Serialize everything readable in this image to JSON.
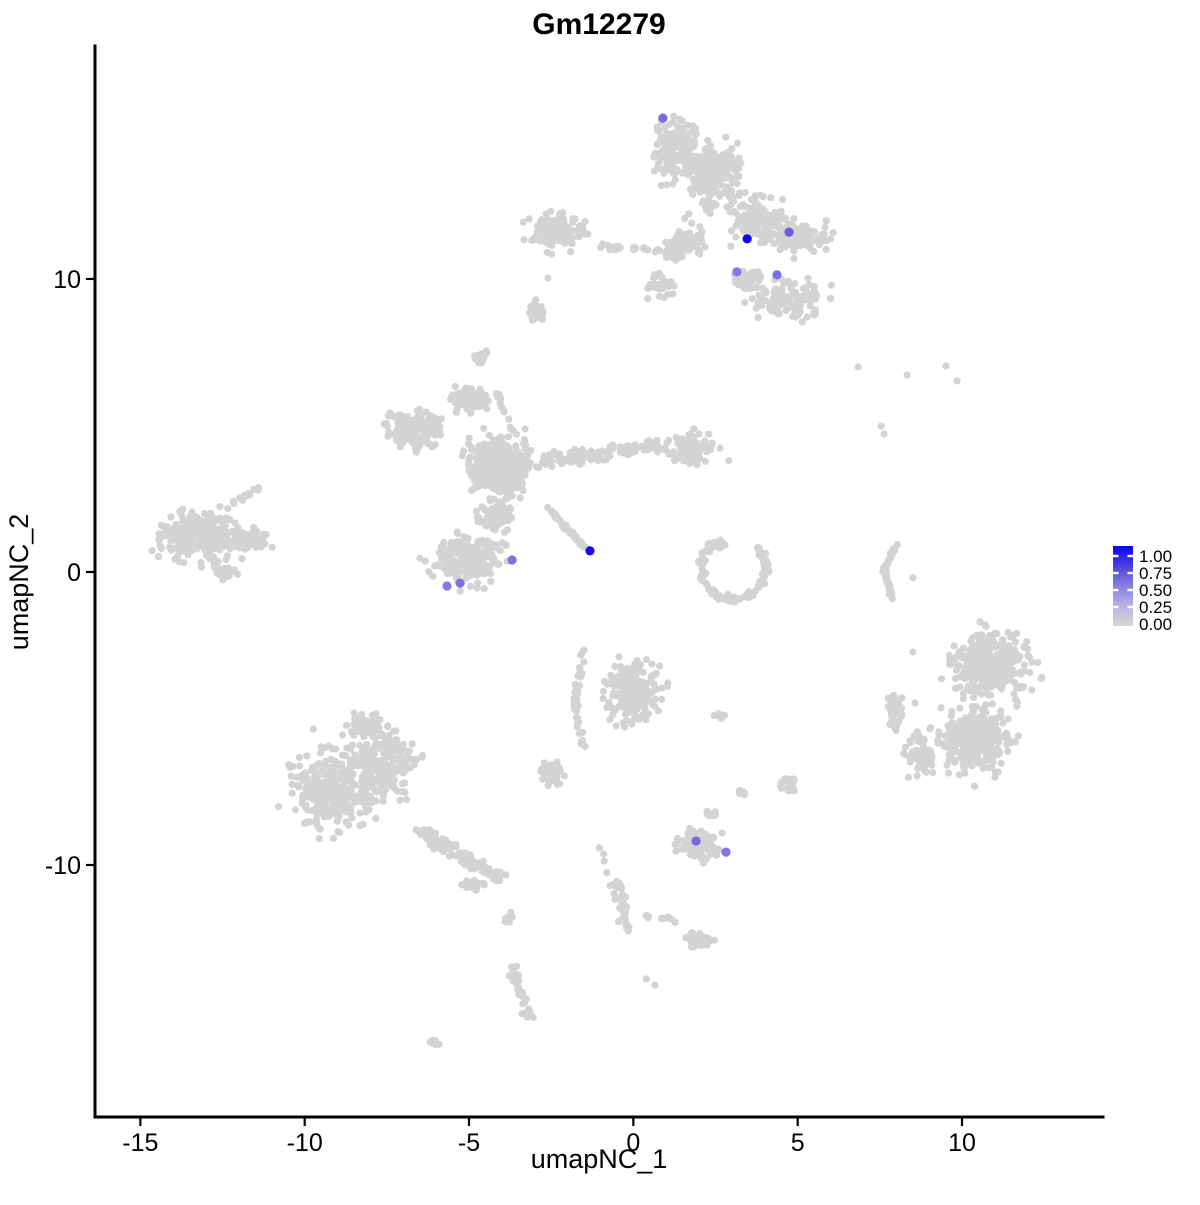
{
  "chart_data": {
    "type": "scatter",
    "title": "Gm12279",
    "xlabel": "umapNC_1",
    "ylabel": "umapNC_2",
    "x_range": [
      -16.38,
      14.29
    ],
    "y_range": [
      -18.6,
      17.95
    ],
    "x_ticks": [
      -15,
      -10,
      -5,
      0,
      5,
      10
    ],
    "y_ticks": [
      -10,
      0,
      10
    ],
    "grid": false,
    "background": "#ffffff",
    "base_point_color": "#d3d3d3",
    "point_radius": 3.6,
    "highlight_radius": 4.6,
    "seed": 20,
    "legend": {
      "position": "right",
      "labels": [
        "1.00",
        "0.75",
        "0.50",
        "0.25",
        "0.00"
      ],
      "values": [
        1.0,
        0.75,
        0.5,
        0.25,
        0.0
      ],
      "gradient": [
        {
          "offset": 0.0,
          "color": "#0502f7"
        },
        {
          "offset": 0.25,
          "color": "#4d41de"
        },
        {
          "offset": 0.5,
          "color": "#8a80e3"
        },
        {
          "offset": 0.75,
          "color": "#b9b3e0"
        },
        {
          "offset": 1.0,
          "color": "#d7d6d9"
        }
      ],
      "tick_color": "#ffffff"
    },
    "clusters": [
      {
        "id": "top-upper-left",
        "kind": "blob",
        "x": 1.33,
        "y": 14.4,
        "rx": 0.91,
        "ry": 1.37,
        "n": 180
      },
      {
        "id": "top-upper-mid",
        "kind": "blob",
        "x": 2.49,
        "y": 13.55,
        "rx": 1.16,
        "ry": 1.54,
        "n": 220
      },
      {
        "id": "top-mid",
        "kind": "blob",
        "x": 3.85,
        "y": 12.01,
        "rx": 1.22,
        "ry": 1.02,
        "n": 150
      },
      {
        "id": "top-right-lobe",
        "kind": "blob",
        "x": 5.07,
        "y": 11.43,
        "rx": 1.16,
        "ry": 0.68,
        "n": 110
      },
      {
        "id": "top-lower-right",
        "kind": "blob",
        "x": 4.77,
        "y": 9.28,
        "rx": 1.46,
        "ry": 0.89,
        "n": 120
      },
      {
        "id": "top-lower-mid",
        "kind": "blob",
        "x": 3.49,
        "y": 9.97,
        "rx": 0.67,
        "ry": 0.61,
        "n": 45
      },
      {
        "id": "top-left-arm",
        "kind": "line",
        "pts": [
          [
            -1.01,
            11.09
          ],
          [
            0.87,
            10.96
          ]
        ],
        "jitter": 0.17,
        "n": 22
      },
      {
        "id": "top-arm-join",
        "kind": "blob",
        "x": 1.21,
        "y": 10.92,
        "rx": 0.61,
        "ry": 0.48,
        "n": 40
      },
      {
        "id": "top-center-sparse",
        "kind": "blob",
        "x": 1.72,
        "y": 11.33,
        "rx": 0.76,
        "ry": 0.85,
        "n": 60
      },
      {
        "id": "top-lower-left-sparse",
        "kind": "blob",
        "x": 0.81,
        "y": 9.8,
        "rx": 0.61,
        "ry": 0.61,
        "n": 30
      },
      {
        "id": "upper-left-small",
        "kind": "blob",
        "x": -2.32,
        "y": 11.67,
        "rx": 1.28,
        "ry": 0.92,
        "n": 110
      },
      {
        "id": "tiny-blob-1",
        "kind": "blob",
        "x": -2.96,
        "y": 8.87,
        "rx": 0.37,
        "ry": 0.48,
        "n": 25
      },
      {
        "id": "tiny-neck-top",
        "kind": "blob",
        "x": -4.66,
        "y": 7.34,
        "rx": 0.37,
        "ry": 0.41,
        "n": 20
      },
      {
        "id": "tiny-neck-line",
        "kind": "line",
        "pts": [
          [
            -4.3,
            6.62
          ],
          [
            -3.69,
            4.78
          ]
        ],
        "jitter": 0.13,
        "n": 12
      },
      {
        "id": "central-core",
        "kind": "blob",
        "x": -4.06,
        "y": 3.65,
        "rx": 1.37,
        "ry": 1.37,
        "n": 400
      },
      {
        "id": "central-left-arm",
        "kind": "blob",
        "x": -6.64,
        "y": 4.85,
        "rx": 1.16,
        "ry": 0.96,
        "n": 130
      },
      {
        "id": "central-top-arm",
        "kind": "blob",
        "x": -4.97,
        "y": 5.87,
        "rx": 0.76,
        "ry": 0.61,
        "n": 80
      },
      {
        "id": "central-right-arm",
        "kind": "line",
        "pts": [
          [
            -2.69,
            3.82
          ],
          [
            0.81,
            4.33
          ]
        ],
        "jitter": 0.4,
        "n": 120
      },
      {
        "id": "central-right-end",
        "kind": "blob",
        "x": 1.82,
        "y": 4.16,
        "rx": 1.06,
        "ry": 0.85,
        "n": 90
      },
      {
        "id": "central-streak",
        "kind": "line",
        "pts": [
          [
            -2.6,
            2.18
          ],
          [
            -1.47,
            0.82
          ]
        ],
        "jitter": 0.1,
        "n": 45
      },
      {
        "id": "central-bottom",
        "kind": "blob",
        "x": -5.12,
        "y": 0.41,
        "rx": 1.52,
        "ry": 1.19,
        "n": 220
      },
      {
        "id": "central-join",
        "kind": "blob",
        "x": -4.21,
        "y": 1.95,
        "rx": 0.76,
        "ry": 0.61,
        "n": 70
      },
      {
        "id": "left-main",
        "kind": "blob",
        "x": -13.18,
        "y": 1.26,
        "rx": 1.58,
        "ry": 1.19,
        "n": 300
      },
      {
        "id": "left-wedge",
        "kind": "blob",
        "x": -11.66,
        "y": 1.09,
        "rx": 0.85,
        "ry": 0.48,
        "n": 60
      },
      {
        "id": "left-arm",
        "kind": "line",
        "pts": [
          [
            -12.21,
            2.29
          ],
          [
            -11.42,
            2.94
          ]
        ],
        "jitter": 0.14,
        "n": 15
      },
      {
        "id": "left-tail",
        "kind": "blob",
        "x": -12.42,
        "y": 0.0,
        "rx": 0.55,
        "ry": 0.34,
        "n": 30
      },
      {
        "id": "c-cluster-arc",
        "kind": "arc",
        "x": 3.03,
        "y": 0.14,
        "rx": 0.97,
        "ry": 1.09,
        "a0": 140,
        "a1": 400,
        "jitter": 0.22,
        "n": 100
      },
      {
        "id": "c-cluster-top",
        "kind": "blob",
        "x": 2.58,
        "y": 0.92,
        "rx": 0.43,
        "ry": 0.27,
        "n": 15
      },
      {
        "id": "right-thin-arc",
        "kind": "line",
        "pts": [
          [
            8.08,
            1.16
          ],
          [
            7.63,
            0.07
          ],
          [
            7.9,
            -0.96
          ]
        ],
        "jitter": 0.1,
        "n": 40
      },
      {
        "id": "tiny-pair",
        "kind": "blob",
        "x": 2.64,
        "y": -4.91,
        "rx": 0.24,
        "ry": 0.17,
        "n": 8
      },
      {
        "id": "right-main-top",
        "kind": "blob",
        "x": 10.85,
        "y": -3.17,
        "rx": 1.67,
        "ry": 1.54,
        "n": 330
      },
      {
        "id": "right-main-bottom",
        "kind": "blob",
        "x": 10.4,
        "y": -5.73,
        "rx": 1.52,
        "ry": 1.64,
        "n": 300
      },
      {
        "id": "right-appendage",
        "kind": "blob",
        "x": 7.99,
        "y": -4.71,
        "rx": 0.43,
        "ry": 0.82,
        "n": 45
      },
      {
        "id": "right-lower-sparse",
        "kind": "blob",
        "x": 8.72,
        "y": -6.25,
        "rx": 0.67,
        "ry": 1.02,
        "n": 60
      },
      {
        "id": "bottomleft-left",
        "kind": "blob",
        "x": -9.23,
        "y": -7.44,
        "rx": 1.58,
        "ry": 1.98,
        "n": 280
      },
      {
        "id": "bottomleft-right",
        "kind": "blob",
        "x": -7.55,
        "y": -6.59,
        "rx": 1.37,
        "ry": 1.54,
        "n": 220
      },
      {
        "id": "bottomleft-tip",
        "kind": "blob",
        "x": -8.16,
        "y": -5.22,
        "rx": 0.91,
        "ry": 0.51,
        "n": 60
      },
      {
        "id": "bottomleft-arm",
        "kind": "line",
        "pts": [
          [
            -6.49,
            -8.81
          ],
          [
            -4.06,
            -10.44
          ]
        ],
        "jitter": 0.4,
        "n": 110
      },
      {
        "id": "bottomleft-arm-end",
        "kind": "blob",
        "x": -4.88,
        "y": -10.68,
        "rx": 0.55,
        "ry": 0.27,
        "n": 20
      },
      {
        "id": "bottomcenter-main",
        "kind": "blob",
        "x": -0.04,
        "y": -4.1,
        "rx": 1.16,
        "ry": 1.54,
        "n": 220
      },
      {
        "id": "bottomcenter-arc",
        "kind": "line",
        "pts": [
          [
            -1.47,
            -2.59
          ],
          [
            -1.77,
            -4.37
          ],
          [
            -1.53,
            -6.01
          ]
        ],
        "jitter": 0.14,
        "n": 40
      },
      {
        "id": "small-blob-left",
        "kind": "blob",
        "x": -2.53,
        "y": -6.83,
        "rx": 0.55,
        "ry": 0.55,
        "n": 45
      },
      {
        "id": "bottom-small-main",
        "kind": "blob",
        "x": 2.03,
        "y": -9.32,
        "rx": 0.91,
        "ry": 0.68,
        "n": 100
      },
      {
        "id": "bottom-small-top",
        "kind": "blob",
        "x": 2.33,
        "y": -8.29,
        "rx": 0.24,
        "ry": 0.2,
        "n": 10
      },
      {
        "id": "bottom-right-blob",
        "kind": "blob",
        "x": 4.77,
        "y": -7.27,
        "rx": 0.43,
        "ry": 0.41,
        "n": 30
      },
      {
        "id": "bottom-mid-dot",
        "kind": "blob",
        "x": 3.31,
        "y": -7.54,
        "rx": 0.18,
        "ry": 0.17,
        "n": 8
      },
      {
        "id": "chain-vert",
        "kind": "line",
        "pts": [
          [
            -0.47,
            -10.44
          ],
          [
            -0.16,
            -12.22
          ]
        ],
        "jitter": 0.17,
        "n": 35
      },
      {
        "id": "chain-horiz",
        "kind": "line",
        "pts": [
          [
            0.2,
            -11.71
          ],
          [
            1.27,
            -11.88
          ]
        ],
        "jitter": 0.17,
        "n": 10
      },
      {
        "id": "chain-end-blob",
        "kind": "blob",
        "x": 2.03,
        "y": -12.56,
        "rx": 0.55,
        "ry": 0.41,
        "n": 45
      },
      {
        "id": "lower-vert-blob",
        "kind": "line",
        "pts": [
          [
            -3.69,
            -13.52
          ],
          [
            -3.2,
            -15.29
          ]
        ],
        "jitter": 0.24,
        "n": 40
      },
      {
        "id": "lower-vert-head",
        "kind": "blob",
        "x": -3.81,
        "y": -11.81,
        "rx": 0.15,
        "ry": 0.31,
        "n": 8
      },
      {
        "id": "tiny-bottom-blob",
        "kind": "blob",
        "x": -6.03,
        "y": -16.08,
        "rx": 0.27,
        "ry": 0.2,
        "n": 10
      },
      {
        "id": "sparse-trail",
        "kind": "line",
        "pts": [
          [
            -1.01,
            -9.32
          ],
          [
            -0.34,
            -12.05
          ]
        ],
        "jitter": 0.2,
        "n": 12
      },
      {
        "id": "singles",
        "kind": "dots",
        "pts": [
          [
            -2.6,
            10.03
          ],
          [
            8.51,
            -0.2
          ],
          [
            8.51,
            -2.73
          ],
          [
            8.57,
            -4.47
          ],
          [
            0.39,
            -13.89
          ],
          [
            0.66,
            -14.1
          ],
          [
            6.84,
            7.0
          ],
          [
            8.33,
            6.72
          ],
          [
            9.51,
            7.03
          ],
          [
            9.85,
            6.52
          ],
          [
            7.54,
            4.98
          ],
          [
            7.63,
            4.71
          ]
        ]
      }
    ],
    "highlighted_points": [
      {
        "x": 0.9,
        "y": 15.49,
        "value": 0.55,
        "color": "#7b68e4"
      },
      {
        "x": 3.46,
        "y": 11.37,
        "value": 1.0,
        "color": "#1803e8"
      },
      {
        "x": 4.74,
        "y": 11.6,
        "value": 0.62,
        "color": "#6c5ce2"
      },
      {
        "x": 3.15,
        "y": 10.24,
        "value": 0.48,
        "color": "#8577e5"
      },
      {
        "x": 4.37,
        "y": 10.14,
        "value": 0.55,
        "color": "#7b6de4"
      },
      {
        "x": -1.32,
        "y": 0.72,
        "value": 0.97,
        "color": "#1c09e8"
      },
      {
        "x": -3.69,
        "y": 0.41,
        "value": 0.5,
        "color": "#8071e4"
      },
      {
        "x": -5.67,
        "y": -0.48,
        "value": 0.46,
        "color": "#8779e5"
      },
      {
        "x": -5.27,
        "y": -0.38,
        "value": 0.51,
        "color": "#7f70e4"
      },
      {
        "x": 1.91,
        "y": -9.18,
        "value": 0.56,
        "color": "#7668e3"
      },
      {
        "x": 2.82,
        "y": -9.56,
        "value": 0.49,
        "color": "#8274e4"
      }
    ]
  }
}
